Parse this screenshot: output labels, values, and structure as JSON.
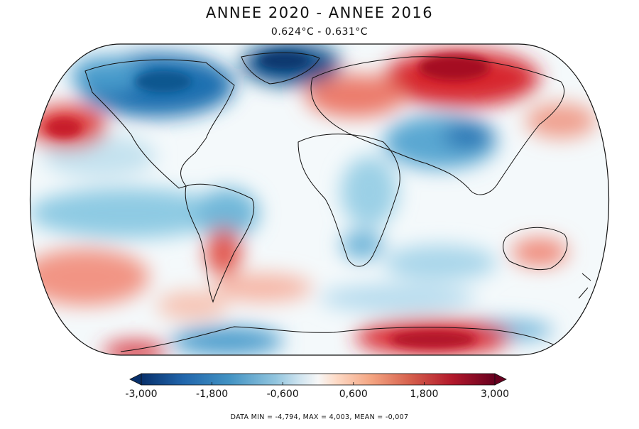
{
  "header": {
    "title": "ANNEE 2020 - ANNEE 2016",
    "subtitle": "0.624°C - 0.631°C"
  },
  "colorbar": {
    "ticks": [
      "-3,000",
      "-1,800",
      "-0,600",
      "0,600",
      "1,800",
      "3,000"
    ],
    "tick_values": [
      -3.0,
      -1.8,
      -0.6,
      0.6,
      1.8,
      3.0
    ],
    "range": [
      -3.0,
      3.0
    ],
    "extend": "both",
    "colors": [
      "#08306b",
      "#2166ac",
      "#4393c3",
      "#92c5de",
      "#d1e5f0",
      "#f7f7f7",
      "#fddbc7",
      "#f4a582",
      "#d6604d",
      "#b2182b",
      "#67001f"
    ]
  },
  "stats": {
    "text": "DATA MIN = -4,794, MAX = 4,003, MEAN = -0,007"
  }
}
